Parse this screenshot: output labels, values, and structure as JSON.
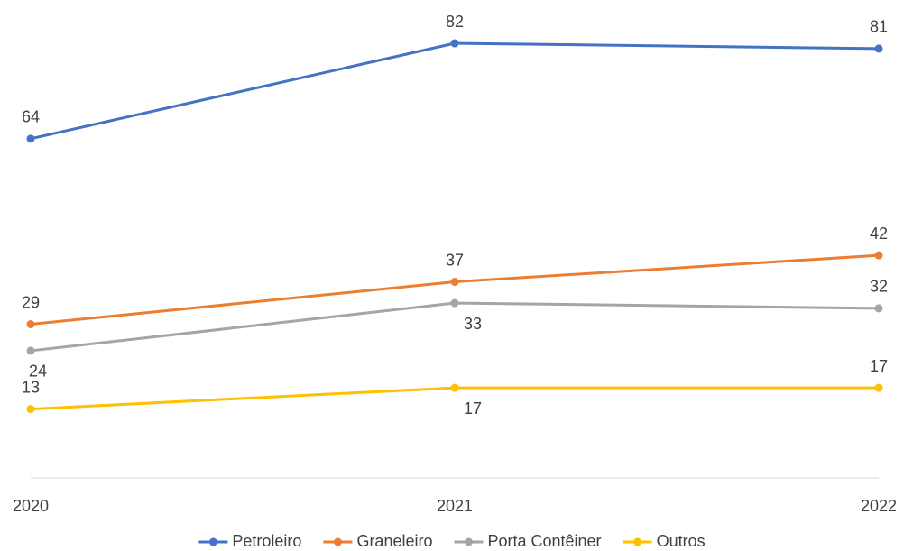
{
  "chart_data": {
    "type": "line",
    "categories": [
      "2020",
      "2021",
      "2022"
    ],
    "series": [
      {
        "name": "Petroleiro",
        "color": "#4472c4",
        "values": [
          64,
          82,
          81
        ]
      },
      {
        "name": "Graneleiro",
        "color": "#ed7d31",
        "values": [
          29,
          37,
          42
        ]
      },
      {
        "name": "Porta Contêiner",
        "color": "#a5a5a5",
        "values": [
          24,
          33,
          32
        ]
      },
      {
        "name": "Outros",
        "color": "#ffc000",
        "values": [
          13,
          17,
          17
        ]
      }
    ],
    "ylim": [
      0,
      90
    ],
    "legend": "bottom"
  }
}
